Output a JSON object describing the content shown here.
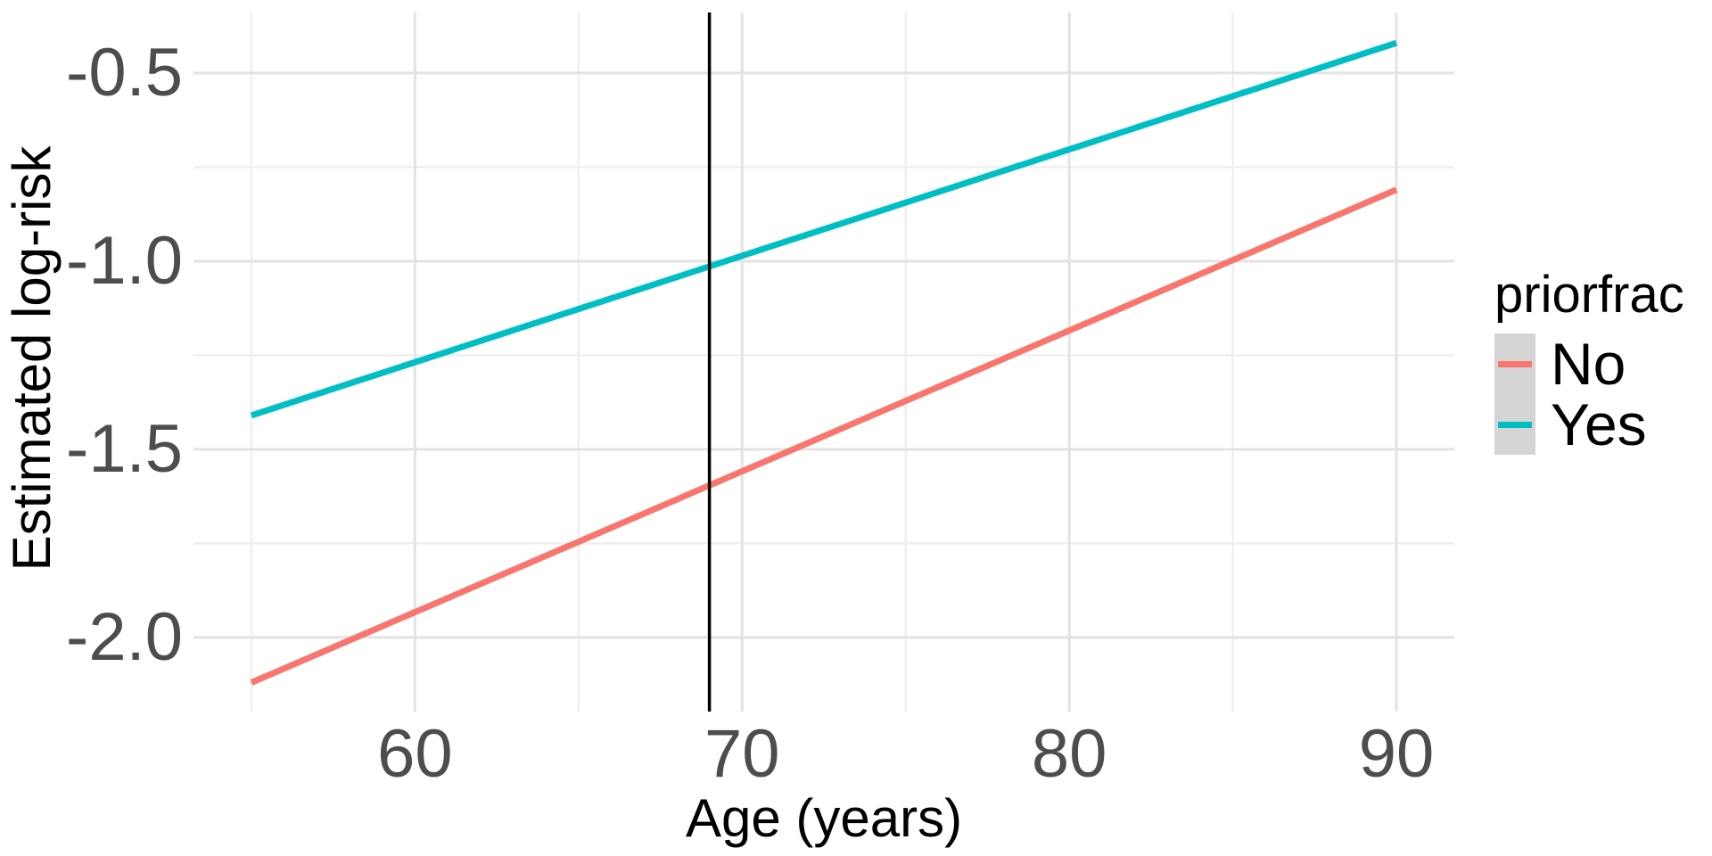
{
  "chart_data": {
    "type": "line",
    "title": "",
    "xlabel": "Age (years)",
    "ylabel": "Estimated log-risk",
    "x_axis": {
      "range": [
        53.23,
        91.77
      ],
      "ticks": [
        {
          "v": 60,
          "label": "60"
        },
        {
          "v": 70,
          "label": "70"
        },
        {
          "v": 80,
          "label": "80"
        },
        {
          "v": 90,
          "label": "90"
        }
      ],
      "minor_ticks": [
        55,
        65,
        75,
        85
      ],
      "grid": true
    },
    "y_axis": {
      "range": [
        -2.197,
        -0.339
      ],
      "ticks": [
        {
          "v": -0.5,
          "label": "-0.5"
        },
        {
          "v": -1.0,
          "label": "-1.0"
        },
        {
          "v": -1.5,
          "label": "-1.5"
        },
        {
          "v": -2.0,
          "label": "-2.0"
        }
      ],
      "minor_ticks": [
        -0.75,
        -1.25,
        -1.75
      ],
      "grid": true
    },
    "series": [
      {
        "name": "No",
        "color": "#F8766D",
        "points": [
          [
            55,
            -2.12
          ],
          [
            90,
            -0.81
          ]
        ]
      },
      {
        "name": "Yes",
        "color": "#00BFC4",
        "points": [
          [
            55,
            -1.41
          ],
          [
            90,
            -0.42
          ]
        ]
      }
    ],
    "vline": {
      "x": 69,
      "color": "#000000"
    },
    "legend": {
      "title": "priorfrac",
      "position": "right",
      "key_fill": "#D5D5D5",
      "items": [
        {
          "label": "No",
          "color": "#F8766D"
        },
        {
          "label": "Yes",
          "color": "#00BFC4"
        }
      ]
    },
    "grid_major_color": "#E3E3E3",
    "grid_minor_color": "#EFEFEF",
    "panel_background": "#FFFFFF"
  }
}
